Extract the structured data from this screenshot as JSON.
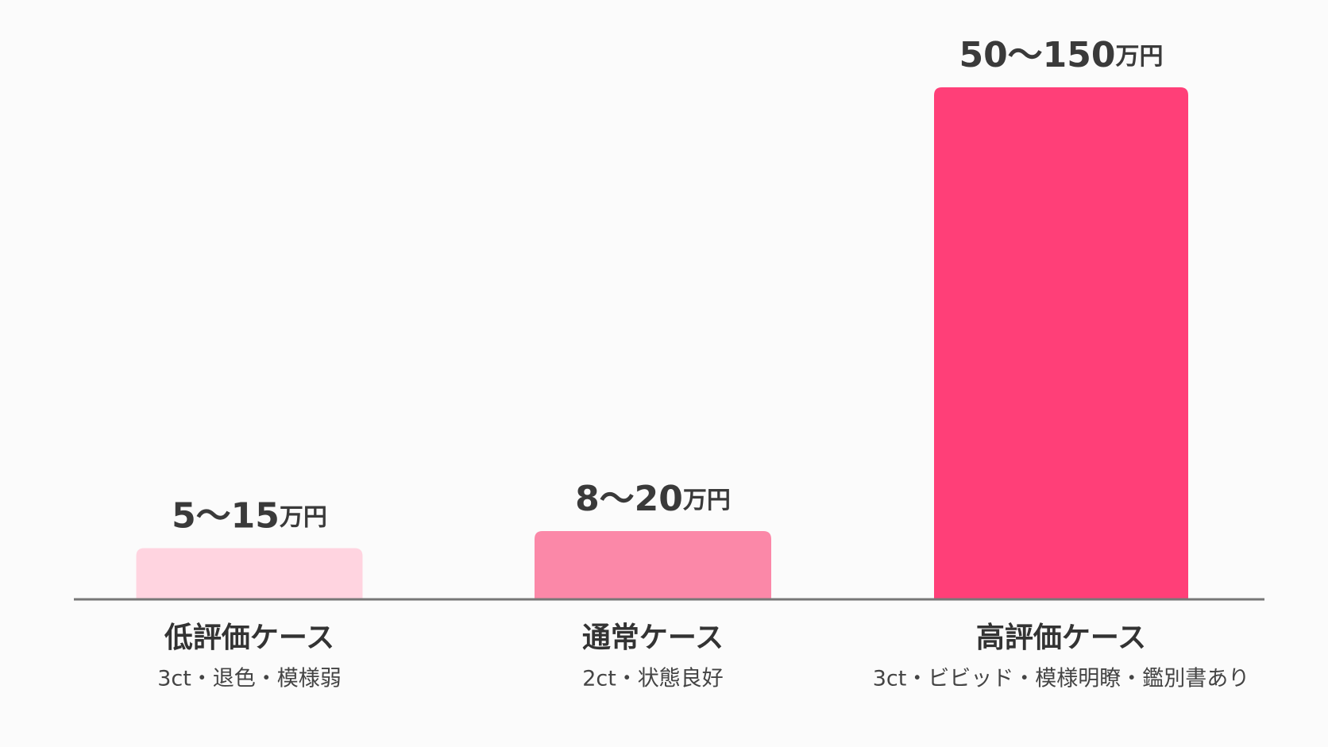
{
  "chart_data": {
    "type": "bar",
    "categories": [
      "低評価ケース",
      "通常ケース",
      "高評価ケース"
    ],
    "descriptions": [
      "3ct・退色・模様弱",
      "2ct・状態良好",
      "3ct・ビビッド・模様明瞭・鑑別書あり"
    ],
    "low": [
      5,
      8,
      50
    ],
    "values": [
      15,
      20,
      150
    ],
    "value_labels": [
      "5〜15",
      "8〜20",
      "50〜150"
    ],
    "unit": "万円",
    "colors": [
      "#ffd4e0",
      "#fb88a8",
      "#ff3f78"
    ],
    "ylim": [
      0,
      150
    ]
  }
}
